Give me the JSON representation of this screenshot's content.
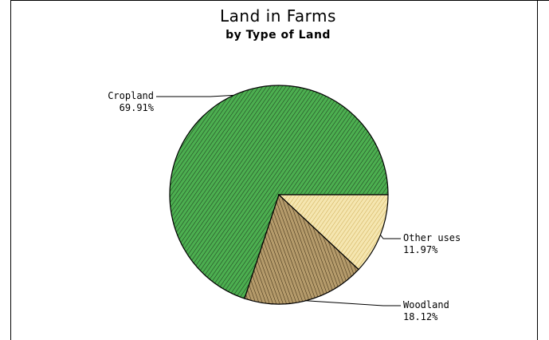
{
  "chart_data": {
    "type": "pie",
    "title": "Land in Farms",
    "subtitle": "by Type of Land",
    "slices": [
      {
        "label": "Cropland",
        "value": 69.91,
        "value_text": "69.91%",
        "color": "#4caf50",
        "pattern": "diagonal-hatch"
      },
      {
        "label": "Woodland",
        "value": 18.12,
        "value_text": "18.12%",
        "color": "#b59b6b",
        "pattern": "diagonal-hatch"
      },
      {
        "label": "Other uses",
        "value": 11.97,
        "value_text": "11.97%",
        "color": "#f5e6b0",
        "pattern": "diagonal-hatch"
      }
    ],
    "legend": "none",
    "grid": false
  }
}
